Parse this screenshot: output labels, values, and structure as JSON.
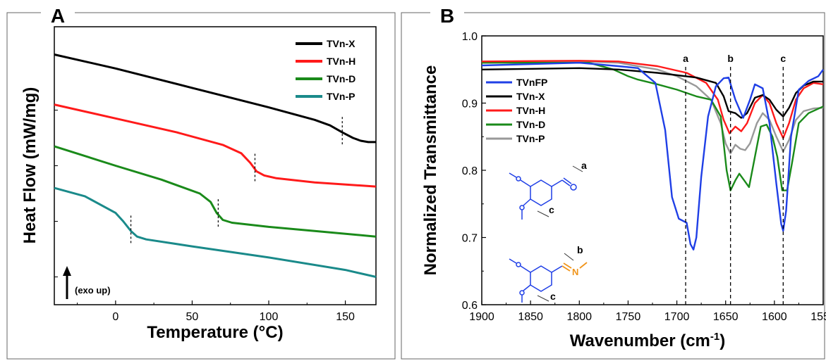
{
  "chart_data": [
    {
      "panel": "A",
      "type": "line",
      "xlabel": "Temperature (°C)",
      "ylabel": "Heat Flow (mW/mg)",
      "xlim": [
        -40,
        170
      ],
      "xticks": [
        0,
        50,
        100,
        150
      ],
      "yticks_labeled": false,
      "annotation": "(exo up)",
      "legend_position": "top-right",
      "series": [
        {
          "name": "TVn-X",
          "color": "#000000",
          "x": [
            -40,
            0,
            50,
            100,
            130,
            140,
            148,
            155,
            160,
            165,
            170
          ],
          "y": [
            0.9,
            0.85,
            0.78,
            0.71,
            0.665,
            0.645,
            0.62,
            0.6,
            0.59,
            0.585,
            0.585
          ],
          "transition_x": 148
        },
        {
          "name": "TVn-H",
          "color": "#ff1a1a",
          "x": [
            -40,
            0,
            40,
            70,
            82,
            88,
            92,
            97,
            105,
            130,
            170
          ],
          "y": [
            0.72,
            0.67,
            0.62,
            0.575,
            0.545,
            0.51,
            0.48,
            0.465,
            0.455,
            0.44,
            0.425
          ],
          "transition_x": 91
        },
        {
          "name": "TVn-D",
          "color": "#1a8a1a",
          "x": [
            -40,
            0,
            30,
            55,
            62,
            66,
            70,
            76,
            100,
            130,
            170
          ],
          "y": [
            0.57,
            0.5,
            0.45,
            0.4,
            0.37,
            0.33,
            0.305,
            0.295,
            0.28,
            0.265,
            0.245
          ],
          "transition_x": 67
        },
        {
          "name": "TVn-P",
          "color": "#1a8a8a",
          "x": [
            -40,
            -20,
            0,
            5,
            10,
            14,
            20,
            50,
            100,
            150,
            170
          ],
          "y": [
            0.42,
            0.39,
            0.33,
            0.3,
            0.265,
            0.245,
            0.235,
            0.21,
            0.17,
            0.125,
            0.1
          ],
          "transition_x": 10
        }
      ]
    },
    {
      "panel": "B",
      "type": "line",
      "xlabel": "Wavenumber (cm-1)",
      "ylabel": "Normalized Transmittance",
      "xlim": [
        1900,
        1550
      ],
      "ylim": [
        0.6,
        1.0
      ],
      "xticks": [
        1900,
        1850,
        1800,
        1750,
        1700,
        1650,
        1600,
        1550
      ],
      "yticks": [
        0.6,
        0.7,
        0.8,
        0.9,
        1.0
      ],
      "legend_position": "left",
      "peak_markers": [
        {
          "label": "a",
          "x": 1691
        },
        {
          "label": "b",
          "x": 1645
        },
        {
          "label": "c",
          "x": 1591
        }
      ],
      "series": [
        {
          "name": "TVnFP",
          "color": "#1f3fe6",
          "x": [
            1900,
            1800,
            1760,
            1740,
            1722,
            1712,
            1705,
            1698,
            1690,
            1686,
            1683,
            1680,
            1675,
            1668,
            1660,
            1652,
            1647,
            1640,
            1632,
            1625,
            1620,
            1612,
            1605,
            1598,
            1593,
            1591,
            1588,
            1583,
            1575,
            1565,
            1555,
            1550
          ],
          "y": [
            0.956,
            0.96,
            0.955,
            0.952,
            0.93,
            0.86,
            0.76,
            0.728,
            0.722,
            0.69,
            0.682,
            0.7,
            0.79,
            0.88,
            0.925,
            0.937,
            0.938,
            0.905,
            0.878,
            0.905,
            0.928,
            0.922,
            0.87,
            0.78,
            0.72,
            0.71,
            0.74,
            0.85,
            0.92,
            0.933,
            0.94,
            0.95
          ]
        },
        {
          "name": "TVn-X",
          "color": "#000000",
          "x": [
            1900,
            1800,
            1760,
            1720,
            1680,
            1660,
            1652,
            1647,
            1640,
            1634,
            1628,
            1620,
            1612,
            1605,
            1598,
            1591,
            1585,
            1578,
            1570,
            1560,
            1550
          ],
          "y": [
            0.95,
            0.952,
            0.95,
            0.945,
            0.938,
            0.93,
            0.91,
            0.888,
            0.885,
            0.878,
            0.885,
            0.908,
            0.912,
            0.905,
            0.89,
            0.88,
            0.893,
            0.915,
            0.926,
            0.932,
            0.932
          ]
        },
        {
          "name": "TVn-H",
          "color": "#ff1a1a",
          "x": [
            1900,
            1800,
            1760,
            1720,
            1690,
            1670,
            1658,
            1652,
            1646,
            1640,
            1634,
            1628,
            1620,
            1612,
            1605,
            1598,
            1591,
            1585,
            1578,
            1570,
            1560,
            1550
          ],
          "y": [
            0.962,
            0.963,
            0.962,
            0.955,
            0.945,
            0.93,
            0.905,
            0.875,
            0.855,
            0.865,
            0.858,
            0.87,
            0.9,
            0.912,
            0.9,
            0.87,
            0.848,
            0.87,
            0.905,
            0.922,
            0.93,
            0.928
          ]
        },
        {
          "name": "TVn-D",
          "color": "#1a8a1a",
          "x": [
            1900,
            1790,
            1765,
            1750,
            1740,
            1720,
            1700,
            1680,
            1665,
            1655,
            1649,
            1645,
            1640,
            1636,
            1631,
            1626,
            1620,
            1614,
            1608,
            1602,
            1597,
            1592,
            1587,
            1582,
            1575,
            1565,
            1550
          ],
          "y": [
            0.96,
            0.96,
            0.95,
            0.94,
            0.935,
            0.928,
            0.92,
            0.91,
            0.905,
            0.88,
            0.8,
            0.77,
            0.785,
            0.795,
            0.785,
            0.775,
            0.82,
            0.865,
            0.868,
            0.85,
            0.82,
            0.77,
            0.77,
            0.81,
            0.87,
            0.885,
            0.895
          ]
        },
        {
          "name": "TVn-P",
          "color": "#999999",
          "x": [
            1900,
            1800,
            1760,
            1720,
            1700,
            1680,
            1665,
            1655,
            1650,
            1645,
            1640,
            1635,
            1630,
            1625,
            1618,
            1612,
            1605,
            1598,
            1591,
            1585,
            1578,
            1570,
            1560,
            1550
          ],
          "y": [
            0.96,
            0.962,
            0.96,
            0.95,
            0.94,
            0.925,
            0.905,
            0.87,
            0.84,
            0.825,
            0.838,
            0.832,
            0.83,
            0.84,
            0.87,
            0.885,
            0.875,
            0.85,
            0.828,
            0.845,
            0.875,
            0.888,
            0.892,
            0.893
          ]
        }
      ]
    }
  ],
  "structures": {
    "top_labels": [
      "a",
      "c"
    ],
    "bottom_labels": [
      "b",
      "N",
      "c"
    ]
  }
}
